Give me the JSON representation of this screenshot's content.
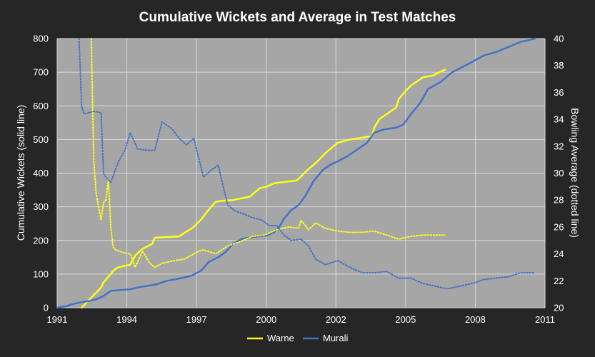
{
  "chart_data": {
    "type": "line",
    "title": "Cumulative Wickets and Average in Test Matches",
    "ylabel": "Cumulative Wickets (solid line)",
    "y2label": "Bowling Average (dotted line)",
    "xlim": [
      1991,
      2011
    ],
    "ylim": [
      0,
      800
    ],
    "y2lim": [
      20,
      40
    ],
    "x_ticks": [
      "1991",
      "1994",
      "1997",
      "2000",
      "2002",
      "2005",
      "2008",
      "2011"
    ],
    "y_ticks": [
      "0",
      "100",
      "200",
      "300",
      "400",
      "500",
      "600",
      "700",
      "800"
    ],
    "y2_ticks": [
      "20",
      "22",
      "24",
      "26",
      "28",
      "30",
      "32",
      "34",
      "36",
      "38",
      "40"
    ],
    "grid": true,
    "legend_position": "bottom",
    "colors": {
      "Warne": "#ffff1a",
      "Murali": "#4472c4",
      "plot_bg": "#a6a6a6",
      "background": "#262626"
    },
    "series": [
      {
        "name": "Warne",
        "axis": "left",
        "style": "solid",
        "x": [
          1992.0,
          1992.4,
          1992.6,
          1992.8,
          1992.9,
          1993.2,
          1993.3,
          1993.5,
          1994.0,
          1994.2,
          1994.5,
          1994.9,
          1995.0,
          1995.5,
          1996.0,
          1996.6,
          1996.9,
          1997.2,
          1997.5,
          1997.8,
          1998.2,
          1998.9,
          1999.3,
          1999.6,
          1999.9,
          2000.1,
          2000.8,
          2001.0,
          2001.2,
          2001.4,
          2001.6,
          2001.9,
          2002.0,
          2002.5,
          2003.0,
          2003.9,
          2004.0,
          2004.2,
          2004.5,
          2004.9,
          2005.0,
          2005.3,
          2005.5,
          2005.8,
          2006.0,
          2006.4,
          2006.9
        ],
        "values": [
          0,
          30,
          45,
          60,
          75,
          100,
          110,
          120,
          128,
          155,
          175,
          190,
          208,
          210,
          212,
          240,
          262,
          290,
          315,
          318,
          320,
          330,
          355,
          360,
          370,
          372,
          378,
          390,
          405,
          418,
          430,
          452,
          460,
          490,
          500,
          510,
          535,
          560,
          575,
          595,
          620,
          645,
          660,
          675,
          685,
          690,
          708
        ]
      },
      {
        "name": "Murali",
        "axis": "left",
        "style": "solid",
        "x": [
          1991.0,
          1991.4,
          1991.6,
          1991.9,
          1992.3,
          1992.6,
          1992.9,
          1993.0,
          1993.2,
          1993.5,
          1994.0,
          1994.3,
          1994.7,
          1995.1,
          1995.5,
          1995.9,
          1996.2,
          1996.5,
          1996.9,
          1997.2,
          1997.6,
          1997.9,
          1998.2,
          1998.6,
          1999.0,
          1999.6,
          1999.9,
          2000.1,
          2000.3,
          2000.6,
          2000.9,
          2001.2,
          2001.5,
          2001.9,
          2002.2,
          2002.5,
          2002.9,
          2003.3,
          2003.7,
          2004.0,
          2004.4,
          2004.9,
          2005.2,
          2005.5,
          2005.9,
          2006.2,
          2006.7,
          2007.2,
          2007.6,
          2008.0,
          2008.5,
          2009.0,
          2009.5,
          2010.0,
          2010.6
        ],
        "values": [
          0,
          5,
          10,
          15,
          20,
          25,
          35,
          40,
          50,
          52,
          55,
          60,
          65,
          70,
          80,
          85,
          90,
          95,
          110,
          135,
          150,
          165,
          190,
          205,
          210,
          215,
          225,
          240,
          265,
          290,
          305,
          335,
          375,
          410,
          425,
          435,
          450,
          470,
          490,
          520,
          530,
          535,
          545,
          575,
          610,
          650,
          670,
          700,
          715,
          730,
          750,
          760,
          775,
          790,
          800
        ]
      },
      {
        "name": "Warne",
        "axis": "right",
        "style": "dotted",
        "x": [
          1992.4,
          1992.5,
          1992.6,
          1992.8,
          1992.9,
          1993.0,
          1993.1,
          1993.2,
          1993.3,
          1993.4,
          1993.7,
          1994.0,
          1994.2,
          1994.5,
          1994.8,
          1995.0,
          1995.3,
          1995.8,
          1996.2,
          1996.8,
          1997.0,
          1997.5,
          1998.0,
          1998.5,
          1999.0,
          1999.5,
          2000.0,
          2000.5,
          2000.9,
          2001.0,
          2001.3,
          2001.6,
          2002.0,
          2002.5,
          2003.0,
          2003.5,
          2004.0,
          2004.5,
          2005.0,
          2005.5,
          2006.0,
          2006.9
        ],
        "values": [
          40.0,
          31.0,
          28.5,
          26.5,
          27.8,
          28.0,
          29.5,
          26.0,
          24.5,
          24.3,
          24.1,
          24.0,
          23.0,
          24.2,
          23.3,
          23.0,
          23.3,
          23.5,
          23.6,
          24.2,
          24.3,
          24.0,
          24.6,
          24.9,
          25.3,
          25.4,
          25.8,
          26.0,
          25.9,
          26.5,
          25.8,
          26.3,
          25.9,
          25.7,
          25.6,
          25.6,
          25.7,
          25.4,
          25.1,
          25.3,
          25.4,
          25.4
        ]
      },
      {
        "name": "Murali",
        "axis": "right",
        "style": "dotted",
        "x": [
          1991.9,
          1992.0,
          1992.1,
          1992.5,
          1992.8,
          1992.9,
          1993.0,
          1993.2,
          1993.5,
          1993.8,
          1994.0,
          1994.3,
          1994.7,
          1995.0,
          1995.3,
          1995.7,
          1996.0,
          1996.3,
          1996.6,
          1997.0,
          1997.3,
          1997.6,
          1998.0,
          1998.3,
          1998.6,
          1999.0,
          1999.4,
          1999.7,
          2000.0,
          2000.3,
          2000.6,
          2001.0,
          2001.3,
          2001.6,
          2002.0,
          2002.5,
          2003.0,
          2003.5,
          2004.0,
          2004.5,
          2005.0,
          2005.5,
          2006.0,
          2006.5,
          2007.0,
          2007.5,
          2008.0,
          2008.5,
          2009.0,
          2009.5,
          2010.0,
          2010.6
        ],
        "values": [
          40.0,
          35.0,
          34.4,
          34.6,
          34.5,
          30.0,
          29.7,
          29.3,
          30.8,
          31.8,
          33.0,
          31.8,
          31.7,
          31.7,
          33.8,
          33.3,
          32.6,
          32.1,
          32.6,
          29.7,
          30.2,
          30.6,
          27.6,
          27.2,
          27.0,
          26.7,
          26.5,
          26.1,
          26.1,
          25.4,
          25.0,
          25.1,
          24.6,
          23.6,
          23.2,
          23.5,
          23.0,
          22.6,
          22.6,
          22.7,
          22.2,
          22.2,
          21.8,
          21.6,
          21.4,
          21.6,
          21.8,
          22.1,
          22.2,
          22.3,
          22.6,
          22.6
        ]
      }
    ]
  }
}
